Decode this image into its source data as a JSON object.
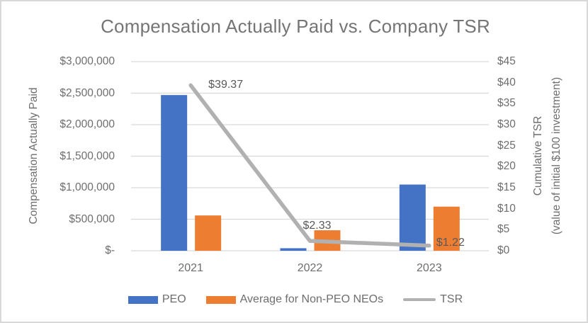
{
  "title": "Compensation Actually Paid vs. Company TSR",
  "colors": {
    "peo_bar": "#4472C4",
    "neo_bar": "#ED7D31",
    "tsr_line": "#B1B1B1",
    "gridline": "#D9D9D9",
    "title_text": "#757575",
    "tick_text": "#6E6E6E",
    "data_label_text": "#595959"
  },
  "left_axis": {
    "title": "Compensation Actually Paid",
    "ticks": [
      "$3,000,000",
      "$2,500,000",
      "$2,000,000",
      "$1,500,000",
      "$1,000,000",
      "$500,000",
      "$-"
    ],
    "max": 3000000,
    "min": 0
  },
  "right_axis": {
    "title_line1": "Cumulative TSR",
    "title_line2": "(value of initial $100 investment)",
    "ticks": [
      "$45",
      "$40",
      "$35",
      "$30",
      "$25",
      "$20",
      "$15",
      "$10",
      "$5",
      "$0"
    ],
    "max": 45,
    "min": 0
  },
  "chart_data": {
    "type": "bar",
    "categories": [
      "2021",
      "2022",
      "2023"
    ],
    "series": [
      {
        "name": "PEO",
        "type": "bar",
        "axis": "left",
        "values": [
          2470000,
          40000,
          1050000
        ]
      },
      {
        "name": "Average for Non-PEO NEOs",
        "type": "bar",
        "axis": "left",
        "values": [
          560000,
          325000,
          700000
        ]
      },
      {
        "name": "TSR",
        "type": "line",
        "axis": "right",
        "values": [
          39.37,
          2.33,
          1.22
        ],
        "point_labels": [
          "$39.37",
          "$2.33",
          "$1.22"
        ]
      }
    ],
    "title": "Compensation Actually Paid vs. Company TSR",
    "xlabel": "",
    "ylabel_left": "Compensation Actually Paid",
    "ylabel_right": "Cumulative TSR (value of initial $100 investment)",
    "ylim_left": [
      0,
      3000000
    ],
    "ylim_right": [
      0,
      45
    ],
    "grid": true,
    "legend_position": "bottom",
    "legend": [
      "PEO",
      "Average for Non-PEO NEOs",
      "TSR"
    ]
  }
}
